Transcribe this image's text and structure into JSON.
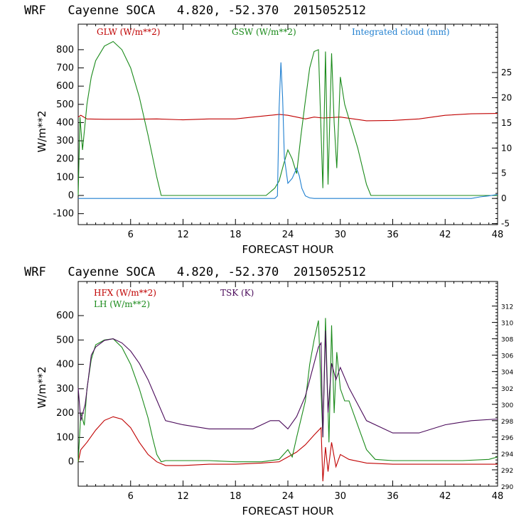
{
  "chart_data": [
    {
      "type": "line",
      "title": "WRF   Cayenne SOCA   4.820, -52.370  2015052512",
      "xlabel": "FORECAST HOUR",
      "ylabel": "W/m**2",
      "xlim": [
        0,
        48
      ],
      "ylim": [
        -160,
        940
      ],
      "xticks": [
        6,
        12,
        18,
        24,
        30,
        36,
        42,
        48
      ],
      "yticks": [
        -100,
        0,
        100,
        200,
        300,
        400,
        500,
        600,
        700,
        800
      ],
      "y2lim": [
        -5.2,
        34.6
      ],
      "y2ticks": [
        -5,
        0,
        5,
        10,
        15,
        20,
        25
      ],
      "series": [
        {
          "name": "GLW (W/m**2)",
          "color": "#c00000",
          "axis": "left",
          "x": [
            0,
            0.3,
            1,
            3,
            6,
            9,
            12,
            15,
            18,
            20,
            22,
            23,
            24,
            25,
            26,
            27,
            28,
            30,
            33,
            36,
            39,
            42,
            45,
            48
          ],
          "y": [
            430,
            440,
            420,
            418,
            418,
            420,
            415,
            420,
            420,
            430,
            440,
            445,
            440,
            430,
            420,
            430,
            425,
            430,
            410,
            412,
            420,
            440,
            448,
            450
          ]
        },
        {
          "name": "GSW (W/m**2)",
          "color": "#1a8a1a",
          "axis": "left",
          "x": [
            0,
            0.2,
            0.5,
            1,
            1.5,
            2,
            3,
            4,
            5,
            6,
            7,
            8,
            9,
            9.5,
            21.5,
            22.5,
            23,
            23.5,
            24,
            24.5,
            25,
            25.5,
            26,
            26.5,
            27,
            27.5,
            28,
            28.3,
            28.6,
            29,
            29.3,
            29.6,
            30,
            30.5,
            31,
            32,
            33,
            33.5,
            48
          ],
          "y": [
            0,
            430,
            250,
            500,
            650,
            740,
            820,
            845,
            800,
            700,
            540,
            330,
            100,
            0,
            0,
            40,
            80,
            170,
            250,
            200,
            120,
            330,
            520,
            700,
            790,
            800,
            40,
            790,
            60,
            780,
            400,
            150,
            650,
            500,
            420,
            260,
            60,
            0,
            0
          ]
        },
        {
          "name": "Integrated cloud (mm)",
          "color": "#1f7fd0",
          "axis": "right",
          "x": [
            0,
            22.5,
            22.8,
            23,
            23.2,
            23.4,
            23.6,
            24,
            24.5,
            25,
            25.3,
            25.6,
            26,
            26.5,
            27,
            45,
            46,
            47,
            48
          ],
          "y": [
            0,
            0,
            0.5,
            18,
            27,
            20,
            8,
            3,
            4,
            6,
            4.5,
            2,
            0.5,
            0.1,
            0,
            0,
            0.3,
            0.5,
            0.8
          ]
        }
      ]
    },
    {
      "type": "line",
      "title": "WRF   Cayenne SOCA   4.820, -52.370  2015052512",
      "xlabel": "FORECAST HOUR",
      "ylabel": "W/m**2",
      "xlim": [
        0,
        48
      ],
      "ylim": [
        -100,
        740
      ],
      "xticks": [
        6,
        12,
        18,
        24,
        30,
        36,
        42,
        48
      ],
      "yticks": [
        0,
        100,
        200,
        300,
        400,
        500,
        600
      ],
      "y2lim": [
        290,
        315
      ],
      "y2ticks": [
        290,
        292,
        294,
        296,
        298,
        300,
        302,
        304,
        306,
        308,
        310,
        312
      ],
      "series": [
        {
          "name": "HFX (W/m**2)",
          "color": "#c00000",
          "axis": "left",
          "x": [
            0,
            0.3,
            1,
            2,
            3,
            4,
            5,
            6,
            7,
            8,
            9,
            10,
            12,
            15,
            18,
            21,
            23,
            24,
            25,
            26,
            27,
            27.8,
            28,
            28.3,
            28.6,
            29,
            29.5,
            30,
            31,
            33,
            36,
            40,
            44,
            48
          ],
          "y": [
            0,
            50,
            80,
            130,
            170,
            185,
            175,
            140,
            80,
            30,
            0,
            -15,
            -15,
            -10,
            -10,
            -5,
            0,
            20,
            40,
            70,
            110,
            140,
            -80,
            60,
            -40,
            80,
            -20,
            30,
            10,
            -5,
            -10,
            -10,
            -10,
            -10
          ]
        },
        {
          "name": "LH (W/m**2)",
          "color": "#1a8a1a",
          "axis": "left",
          "x": [
            0,
            0.3,
            0.7,
            1,
            1.5,
            2,
            3,
            4,
            5,
            6,
            7,
            8,
            8.5,
            9,
            9.5,
            10,
            12,
            15,
            18,
            21,
            23,
            24,
            24.5,
            25,
            26,
            26.5,
            27,
            27.5,
            28,
            28.3,
            28.7,
            29,
            29.3,
            29.6,
            30,
            30.5,
            31,
            32,
            33,
            34,
            36,
            40,
            44,
            47,
            48
          ],
          "y": [
            0,
            200,
            150,
            300,
            420,
            480,
            500,
            505,
            470,
            400,
            300,
            180,
            100,
            30,
            0,
            5,
            5,
            5,
            0,
            0,
            10,
            50,
            20,
            100,
            250,
            400,
            500,
            580,
            100,
            590,
            80,
            560,
            200,
            450,
            300,
            250,
            250,
            150,
            50,
            10,
            5,
            5,
            5,
            10,
            20
          ]
        },
        {
          "name": "TSK (K)",
          "color": "#4a0a5a",
          "axis": "right",
          "x": [
            0,
            0.3,
            0.8,
            1.5,
            2,
            3,
            4,
            5,
            6,
            7,
            8,
            9,
            10,
            12,
            15,
            18,
            20,
            22,
            23,
            24,
            25,
            26,
            27,
            27.5,
            27.8,
            28,
            28.3,
            28.6,
            29,
            29.5,
            30,
            31,
            32,
            33,
            36,
            39,
            42,
            45,
            48
          ],
          "y": [
            302,
            298,
            300,
            306,
            307,
            307.8,
            308,
            307.5,
            306.5,
            305,
            303,
            300.5,
            298,
            297.5,
            297,
            297,
            297,
            298,
            298,
            297,
            298.5,
            301,
            305,
            307,
            307.5,
            296,
            309,
            299,
            305,
            303,
            304.5,
            302,
            300,
            298,
            296.5,
            296.5,
            297.5,
            298,
            298.2
          ]
        }
      ]
    }
  ]
}
